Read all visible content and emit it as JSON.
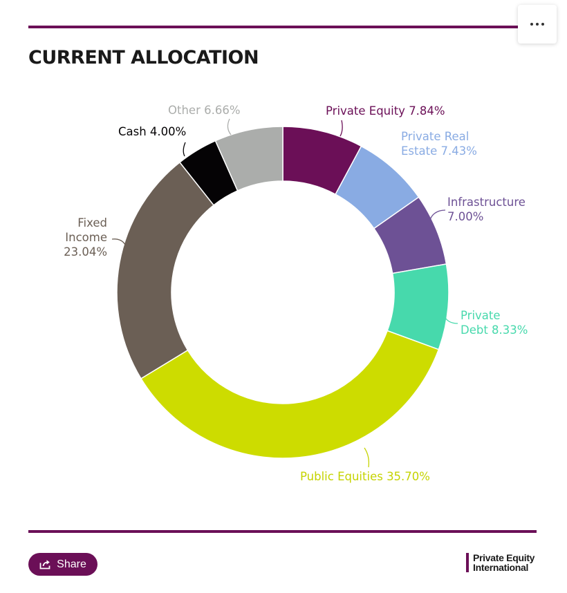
{
  "header": {
    "title": "CURRENT ALLOCATION"
  },
  "toolbar": {
    "menu_icon": "more-horizontal-icon"
  },
  "chart_data": {
    "type": "pie",
    "variant": "donut",
    "slices": [
      {
        "name": "Private Equity",
        "value": 7.84,
        "label": [
          "Private Equity 7.84%"
        ],
        "color": "#6b0f57"
      },
      {
        "name": "Private Real Estate",
        "value": 7.43,
        "label": [
          "Private Real",
          "Estate 7.43%"
        ],
        "color": "#89abe3"
      },
      {
        "name": "Infrastructure",
        "value": 7.0,
        "label": [
          "Infrastructure",
          "7.00%"
        ],
        "color": "#6d5195"
      },
      {
        "name": "Private Debt",
        "value": 8.33,
        "label": [
          "Private",
          "Debt 8.33%"
        ],
        "color": "#47d9ac"
      },
      {
        "name": "Public Equities",
        "value": 35.7,
        "label": [
          "Public Equities 35.70%"
        ],
        "color": "#cddc00"
      },
      {
        "name": "Fixed Income",
        "value": 23.04,
        "label": [
          "Fixed",
          "Income",
          "23.04%"
        ],
        "color": "#6b5f55"
      },
      {
        "name": "Cash",
        "value": 4.0,
        "label": [
          "Cash 4.00%"
        ],
        "color": "#050305"
      },
      {
        "name": "Other",
        "value": 6.66,
        "label": [
          "Other 6.66%"
        ],
        "color": "#abadab"
      }
    ],
    "label_colors": {
      "Private Equity": "#6b0f57",
      "Private Real Estate": "#89abe3",
      "Infrastructure": "#6d5195",
      "Private Debt": "#47d9ac",
      "Public Equities": "#c5d300",
      "Fixed Income": "#6b5f55",
      "Cash": "#050305",
      "Other": "#abadab"
    }
  },
  "footer": {
    "share_label": "Share",
    "share_icon": "share-icon",
    "brand_line1": "Private Equity",
    "brand_line2": "International"
  }
}
